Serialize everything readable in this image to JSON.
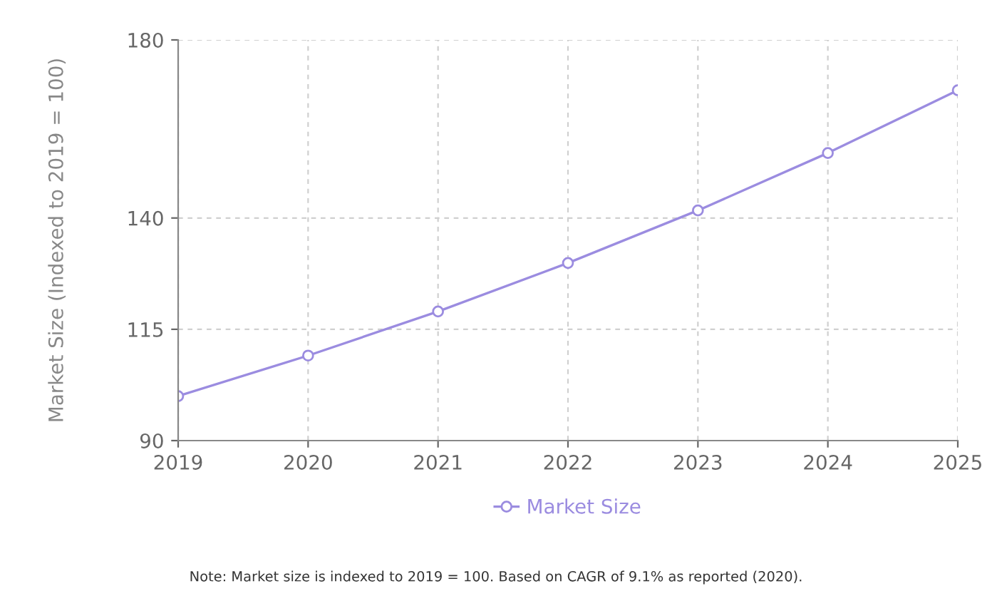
{
  "chart_data": {
    "type": "line",
    "ylabel": "Market Size (Indexed to 2019 = 100)",
    "x": [
      2019,
      2020,
      2021,
      2022,
      2023,
      2024,
      2025
    ],
    "series": [
      {
        "name": "Market Size",
        "color": "#9b8ce0",
        "values": [
          100,
          109.1,
          119,
          129.9,
          141.7,
          154.6,
          168.7
        ]
      }
    ],
    "xlim": [
      2019,
      2025
    ],
    "xticks": [
      2019,
      2020,
      2021,
      2022,
      2023,
      2024,
      2025
    ],
    "ylim": [
      90,
      180
    ],
    "yticks": [
      90,
      115,
      140,
      180
    ],
    "grid": true,
    "legend": "bottom",
    "marker": "circle",
    "line_style": "solid",
    "annotations": [
      "Note: Market size is indexed to 2019 = 100. Based on CAGR of 9.1% as reported (2020)."
    ]
  }
}
